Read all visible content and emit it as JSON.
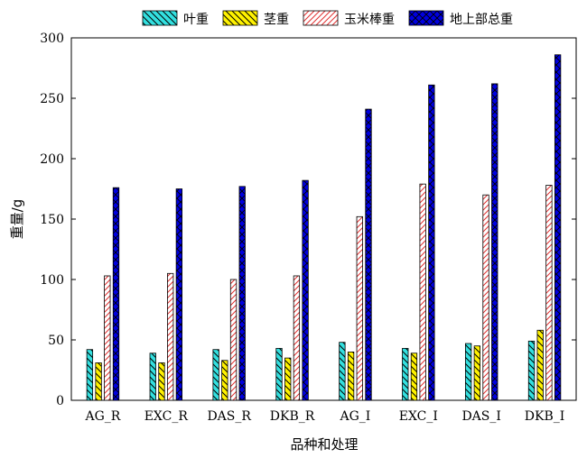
{
  "chart_data": {
    "type": "bar",
    "title": "",
    "xlabel": "品种和处理",
    "ylabel": "重量/g",
    "ylim": [
      0,
      300
    ],
    "yticks": [
      0,
      50,
      100,
      150,
      200,
      250,
      300
    ],
    "grid": false,
    "legend_position": "top",
    "categories": [
      "AG_R",
      "EXC_R",
      "DAS_R",
      "DKB_R",
      "AG_I",
      "EXC_I",
      "DAS_I",
      "DKB_I"
    ],
    "series": [
      {
        "name": "叶重",
        "color": "#33E0E0",
        "pattern": "backslash",
        "values": [
          42,
          39,
          42,
          43,
          48,
          43,
          47,
          49
        ]
      },
      {
        "name": "茎重",
        "color": "#FFF200",
        "pattern": "backslash",
        "values": [
          31,
          31,
          33,
          35,
          40,
          39,
          45,
          58
        ]
      },
      {
        "name": "玉米棒重",
        "color": "#FFFFFF",
        "hatch_color": "#E03030",
        "pattern": "slash",
        "values": [
          103,
          105,
          100,
          103,
          152,
          179,
          170,
          178
        ]
      },
      {
        "name": "地上部总重",
        "color": "#0000E0",
        "pattern": "cross",
        "values": [
          176,
          175,
          177,
          182,
          241,
          261,
          262,
          286
        ]
      }
    ]
  }
}
